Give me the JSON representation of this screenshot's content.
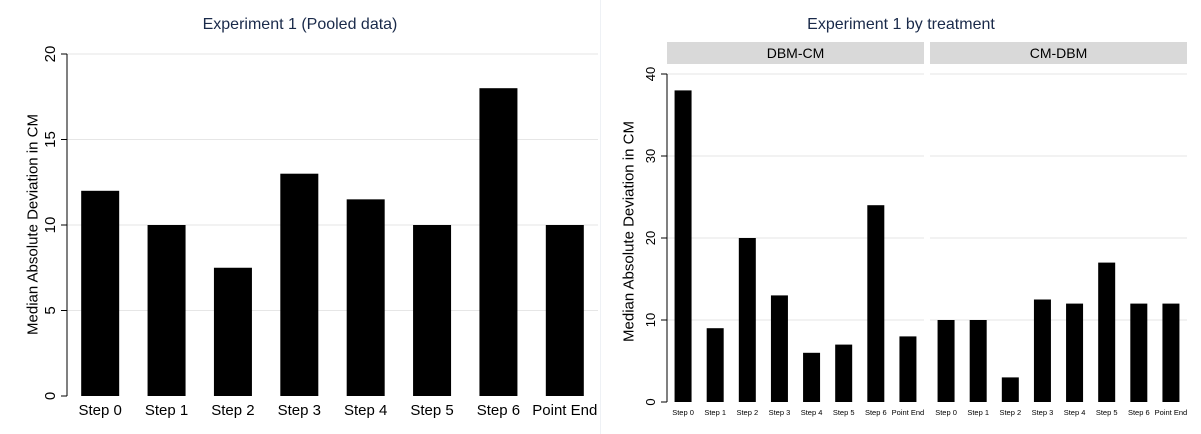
{
  "chart_data": [
    {
      "type": "bar",
      "title": "Experiment 1 (Pooled data)",
      "ylabel": "Median Absolute Deviation in CM",
      "xlabel": "",
      "categories": [
        "Step 0",
        "Step 1",
        "Step 2",
        "Step 3",
        "Step 4",
        "Step 5",
        "Step 6",
        "Point End"
      ],
      "values": [
        12,
        10,
        7.5,
        13,
        11.5,
        10,
        18,
        10
      ],
      "ylim": [
        0,
        20
      ],
      "yticks": [
        0,
        5,
        10,
        15,
        20
      ],
      "grid": true,
      "bar_color": "#000000"
    },
    {
      "type": "bar",
      "title": "Experiment 1 by treatment",
      "ylabel": "Median Absolute Deviation in CM",
      "xlabel": "",
      "categories": [
        "Step 0",
        "Step 1",
        "Step 2",
        "Step 3",
        "Step 4",
        "Step 5",
        "Step 6",
        "Point End"
      ],
      "ylim": [
        0,
        40
      ],
      "yticks": [
        0,
        10,
        20,
        30,
        40
      ],
      "grid": true,
      "bar_color": "#000000",
      "panels": [
        {
          "name": "DBM-CM",
          "values": [
            38,
            9,
            20,
            13,
            6,
            7,
            24,
            8
          ]
        },
        {
          "name": "CM-DBM",
          "values": [
            10,
            10,
            3,
            12.5,
            12,
            17,
            12,
            12
          ]
        }
      ]
    }
  ]
}
